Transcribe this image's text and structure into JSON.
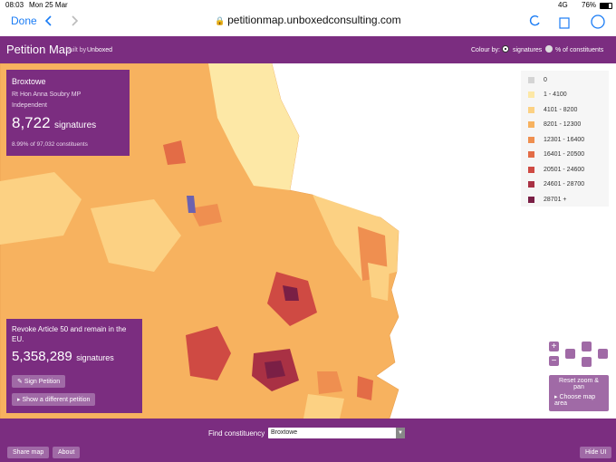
{
  "status_bar": {
    "time": "08:03",
    "date": "Mon 25 Mar",
    "network": "4G",
    "battery": "76%"
  },
  "browser": {
    "done": "Done",
    "url": "petitionmap.unboxedconsulting.com"
  },
  "header": {
    "title": "Petition Map",
    "built_by": "built by",
    "brand": "Unboxed",
    "colour_by": "Colour by:",
    "options": [
      "signatures",
      "% of constituents"
    ]
  },
  "constituency": {
    "name": "Broxtowe",
    "mp": "Rt Hon Anna Soubry MP",
    "party": "Independent",
    "count": "8,722",
    "count_unit": "signatures",
    "share": "8.99% of 97,032 constituents"
  },
  "legend": [
    {
      "label": "0",
      "color": "#d4d4d4"
    },
    {
      "label": "1 - 4100",
      "color": "#fde8a6"
    },
    {
      "label": "4101 - 8200",
      "color": "#fcd183"
    },
    {
      "label": "8201 - 12300",
      "color": "#f7b25f"
    },
    {
      "label": "12301 - 16400",
      "color": "#ef8f50"
    },
    {
      "label": "16401 - 20500",
      "color": "#e36c46"
    },
    {
      "label": "20501 - 24600",
      "color": "#cf4a43"
    },
    {
      "label": "24601 - 28700",
      "color": "#a93144"
    },
    {
      "label": "28701 +",
      "color": "#7a1f45"
    }
  ],
  "petition": {
    "title": "Revoke Article 50 and remain in the EU.",
    "count": "5,358,289",
    "count_unit": "signatures",
    "sign": "Sign Petition",
    "other": "Show a different petition"
  },
  "controls": {
    "zoom_in": "+",
    "zoom_out": "−",
    "reset": "Reset zoom & pan",
    "choose": "Choose map area"
  },
  "footer": {
    "find": "Find constituency",
    "selected": "Broxtowe",
    "share": "Share map",
    "about": "About",
    "hide": "Hide UI"
  }
}
